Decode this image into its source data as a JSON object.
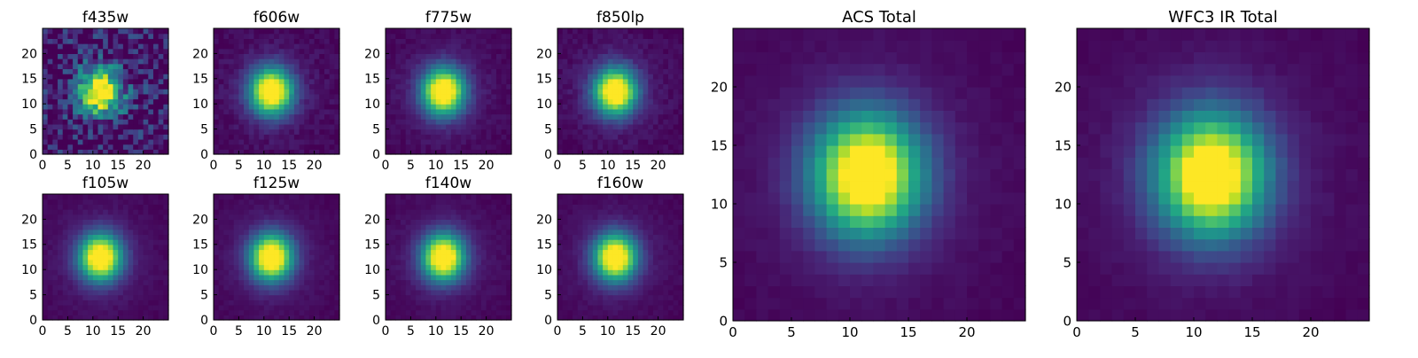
{
  "chart_data": [
    {
      "type": "heatmap",
      "title": "f435w",
      "xticks": [
        0,
        5,
        10,
        15,
        20
      ],
      "yticks": [
        0,
        5,
        10,
        15,
        20
      ],
      "xlim": [
        0,
        25
      ],
      "ylim": [
        0,
        25
      ],
      "grid_size": 25,
      "peak_center": [
        11.5,
        12.5
      ],
      "noise": 0.5,
      "colormap": "viridis"
    },
    {
      "type": "heatmap",
      "title": "f606w",
      "xticks": [
        0,
        5,
        10,
        15,
        20
      ],
      "yticks": [
        0,
        5,
        10,
        15,
        20
      ],
      "xlim": [
        0,
        25
      ],
      "ylim": [
        0,
        25
      ],
      "grid_size": 25,
      "peak_center": [
        11.5,
        12.5
      ],
      "noise": 0.08,
      "colormap": "viridis"
    },
    {
      "type": "heatmap",
      "title": "f775w",
      "xticks": [
        0,
        5,
        10,
        15,
        20
      ],
      "yticks": [
        0,
        5,
        10,
        15,
        20
      ],
      "xlim": [
        0,
        25
      ],
      "ylim": [
        0,
        25
      ],
      "grid_size": 25,
      "peak_center": [
        11.5,
        12.5
      ],
      "noise": 0.06,
      "colormap": "viridis"
    },
    {
      "type": "heatmap",
      "title": "f850lp",
      "xticks": [
        0,
        5,
        10,
        15,
        20
      ],
      "yticks": [
        0,
        5,
        10,
        15,
        20
      ],
      "xlim": [
        0,
        25
      ],
      "ylim": [
        0,
        25
      ],
      "grid_size": 25,
      "peak_center": [
        11.5,
        12.5
      ],
      "noise": 0.07,
      "colormap": "viridis"
    },
    {
      "type": "heatmap",
      "title": "f105w",
      "xticks": [
        0,
        5,
        10,
        15,
        20
      ],
      "yticks": [
        0,
        5,
        10,
        15,
        20
      ],
      "xlim": [
        0,
        25
      ],
      "ylim": [
        0,
        25
      ],
      "grid_size": 25,
      "peak_center": [
        11.5,
        12.5
      ],
      "noise": 0.04,
      "colormap": "viridis"
    },
    {
      "type": "heatmap",
      "title": "f125w",
      "xticks": [
        0,
        5,
        10,
        15,
        20
      ],
      "yticks": [
        0,
        5,
        10,
        15,
        20
      ],
      "xlim": [
        0,
        25
      ],
      "ylim": [
        0,
        25
      ],
      "grid_size": 25,
      "peak_center": [
        11.5,
        12.5
      ],
      "noise": 0.04,
      "colormap": "viridis"
    },
    {
      "type": "heatmap",
      "title": "f140w",
      "xticks": [
        0,
        5,
        10,
        15,
        20
      ],
      "yticks": [
        0,
        5,
        10,
        15,
        20
      ],
      "xlim": [
        0,
        25
      ],
      "ylim": [
        0,
        25
      ],
      "grid_size": 25,
      "peak_center": [
        11.5,
        12.5
      ],
      "noise": 0.04,
      "colormap": "viridis"
    },
    {
      "type": "heatmap",
      "title": "f160w",
      "xticks": [
        0,
        5,
        10,
        15,
        20
      ],
      "yticks": [
        0,
        5,
        10,
        15,
        20
      ],
      "xlim": [
        0,
        25
      ],
      "ylim": [
        0,
        25
      ],
      "grid_size": 25,
      "peak_center": [
        11.5,
        12.5
      ],
      "noise": 0.04,
      "colormap": "viridis"
    },
    {
      "type": "heatmap",
      "title": "ACS Total",
      "xticks": [
        0,
        5,
        10,
        15,
        20
      ],
      "yticks": [
        0,
        5,
        10,
        15,
        20
      ],
      "xlim": [
        0,
        25
      ],
      "ylim": [
        0,
        25
      ],
      "grid_size": 25,
      "peak_center": [
        11.5,
        12.5
      ],
      "noise": 0.03,
      "colormap": "viridis"
    },
    {
      "type": "heatmap",
      "title": "WFC3 IR Total",
      "xticks": [
        0,
        5,
        10,
        15,
        20
      ],
      "yticks": [
        0,
        5,
        10,
        15,
        20
      ],
      "xlim": [
        0,
        25
      ],
      "ylim": [
        0,
        25
      ],
      "grid_size": 25,
      "peak_center": [
        11.5,
        12.5
      ],
      "noise": 0.03,
      "colormap": "viridis"
    }
  ]
}
